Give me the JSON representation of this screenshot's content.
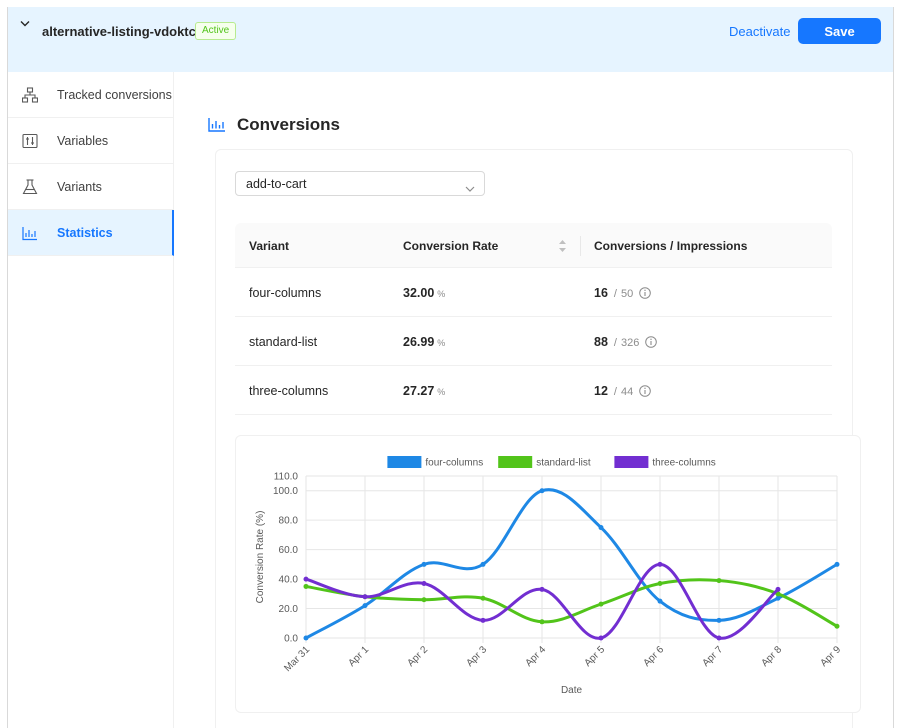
{
  "header": {
    "listing_name": "alternative-listing-vdoktcbj",
    "status": "Active",
    "deactivate_label": "Deactivate",
    "save_label": "Save"
  },
  "sidebar": {
    "items": [
      {
        "label": "Tracked conversions",
        "icon": "sitemap-icon"
      },
      {
        "label": "Variables",
        "icon": "sliders-icon"
      },
      {
        "label": "Variants",
        "icon": "flask-icon"
      },
      {
        "label": "Statistics",
        "icon": "bar-chart-icon",
        "active": true
      }
    ]
  },
  "main": {
    "title": "Conversions",
    "conversion_select": {
      "value": "add-to-cart"
    },
    "table": {
      "columns": [
        "Variant",
        "Conversion Rate",
        "Conversions / Impressions"
      ],
      "rows": [
        {
          "variant": "four-columns",
          "rate": "32.00",
          "unit": "%",
          "conversions": "16",
          "impressions": "50"
        },
        {
          "variant": "standard-list",
          "rate": "26.99",
          "unit": "%",
          "conversions": "88",
          "impressions": "326"
        },
        {
          "variant": "three-columns",
          "rate": "27.27",
          "unit": "%",
          "conversions": "12",
          "impressions": "44"
        }
      ]
    }
  },
  "colors": {
    "accent": "#1677ff",
    "four_columns": "#1e88e5",
    "standard_list": "#52c41a",
    "three_columns": "#722ed1"
  },
  "chart_data": {
    "type": "line",
    "xlabel": "Date",
    "ylabel": "Conversion Rate (%)",
    "ylim": [
      0,
      110
    ],
    "yticks": [
      "0.0",
      "20.0",
      "40.0",
      "60.0",
      "80.0",
      "100.0",
      "110.0"
    ],
    "legend_position": "top",
    "grid": true,
    "categories": [
      "Mar 31",
      "Apr 1",
      "Apr 2",
      "Apr 3",
      "Apr 4",
      "Apr 5",
      "Apr 6",
      "Apr 7",
      "Apr 8",
      "Apr 9"
    ],
    "series": [
      {
        "name": "four-columns",
        "color": "#1e88e5",
        "values": [
          0,
          22,
          50,
          50,
          100,
          75,
          25,
          12,
          27,
          50
        ]
      },
      {
        "name": "standard-list",
        "color": "#52c41a",
        "values": [
          35,
          28,
          26,
          27,
          11,
          23,
          37,
          39,
          30,
          8
        ]
      },
      {
        "name": "three-columns",
        "color": "#722ed1",
        "values": [
          40,
          28,
          37,
          12,
          33,
          0,
          50,
          0,
          33,
          null
        ]
      }
    ]
  }
}
